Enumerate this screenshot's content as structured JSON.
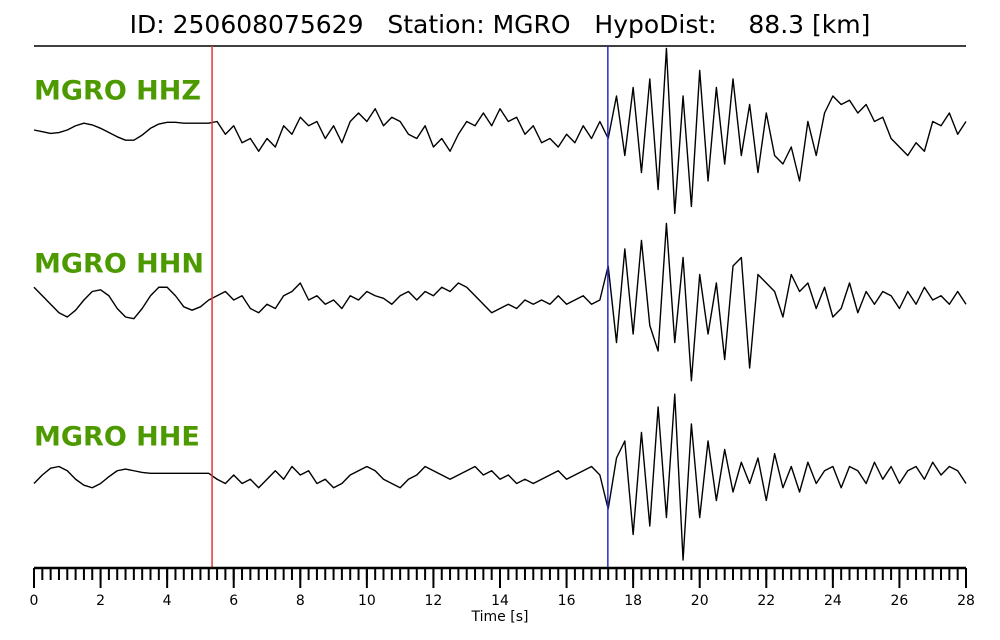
{
  "chart_data": {
    "type": "line",
    "title": "ID: 250608075629   Station: MGRO   HypoDist:    88.3 [km]",
    "xlabel": "Time [s]",
    "label_color": "#4c9a00",
    "xlim": [
      0,
      28
    ],
    "xticks": [
      0,
      2,
      4,
      6,
      8,
      10,
      12,
      14,
      16,
      18,
      20,
      22,
      24,
      26,
      28
    ],
    "xminor_step": 0.25,
    "ylim": [
      -1,
      1
    ],
    "picks": [
      {
        "time": 5.35,
        "color": "#e8333a"
      },
      {
        "time": 17.24,
        "color": "#2b2bd0"
      }
    ],
    "x": [
      0,
      0.25,
      0.5,
      0.75,
      1,
      1.25,
      1.5,
      1.75,
      2,
      2.25,
      2.5,
      2.75,
      3,
      3.25,
      3.5,
      3.75,
      4,
      4.25,
      4.5,
      4.75,
      5,
      5.25,
      5.5,
      5.75,
      6,
      6.25,
      6.5,
      6.75,
      7,
      7.25,
      7.5,
      7.75,
      8,
      8.25,
      8.5,
      8.75,
      9,
      9.25,
      9.5,
      9.75,
      10,
      10.25,
      10.5,
      10.75,
      11,
      11.25,
      11.5,
      11.75,
      12,
      12.25,
      12.5,
      12.75,
      13,
      13.25,
      13.5,
      13.75,
      14,
      14.25,
      14.5,
      14.75,
      15,
      15.25,
      15.5,
      15.75,
      16,
      16.25,
      16.5,
      16.75,
      17,
      17.25,
      17.5,
      17.75,
      18,
      18.25,
      18.5,
      18.75,
      19,
      19.25,
      19.5,
      19.75,
      20,
      20.25,
      20.5,
      20.75,
      21,
      21.25,
      21.5,
      21.75,
      22,
      22.25,
      22.5,
      22.75,
      23,
      23.25,
      23.5,
      23.75,
      24,
      24.25,
      24.5,
      24.75,
      25,
      25.25,
      25.5,
      25.75,
      26,
      26.25,
      26.5,
      26.75,
      27,
      27.25,
      27.5,
      27.75,
      28
    ],
    "series": [
      {
        "name": "MGRO HHZ",
        "color": "#000000",
        "values": [
          0,
          -0.02,
          -0.04,
          -0.03,
          0,
          0.05,
          0.08,
          0.06,
          0.02,
          -0.03,
          -0.08,
          -0.12,
          -0.12,
          -0.06,
          0.02,
          0.07,
          0.09,
          0.09,
          0.08,
          0.08,
          0.08,
          0.08,
          0.1,
          -0.05,
          0.05,
          -0.15,
          -0.1,
          -0.25,
          -0.1,
          -0.2,
          0.05,
          -0.05,
          0.15,
          0.05,
          0.1,
          -0.1,
          0.05,
          -0.15,
          0.1,
          0.2,
          0.1,
          0.25,
          0.05,
          0.15,
          0.1,
          -0.05,
          -0.1,
          0.05,
          -0.2,
          -0.1,
          -0.25,
          -0.05,
          0.1,
          0.05,
          0.2,
          0.05,
          0.25,
          0.1,
          0.15,
          -0.05,
          0.05,
          -0.15,
          -0.1,
          -0.2,
          -0.05,
          -0.15,
          0.05,
          -0.1,
          0.1,
          -0.1,
          0.4,
          -0.3,
          0.5,
          -0.5,
          0.6,
          -0.7,
          0.96,
          -0.98,
          0.4,
          -0.9,
          0.7,
          -0.6,
          0.5,
          -0.4,
          0.6,
          -0.3,
          0.3,
          -0.5,
          0.2,
          -0.3,
          -0.4,
          -0.2,
          -0.6,
          0.1,
          -0.3,
          0.2,
          0.4,
          0.3,
          0.35,
          0.2,
          0.3,
          0.1,
          0.15,
          -0.1,
          -0.2,
          -0.3,
          -0.15,
          -0.25,
          0.1,
          0.05,
          0.2,
          -0.05,
          0.1
        ]
      },
      {
        "name": "MGRO HHN",
        "color": "#000000",
        "values": [
          0.15,
          0.05,
          -0.05,
          -0.15,
          -0.2,
          -0.12,
          0,
          0.1,
          0.12,
          0.05,
          -0.1,
          -0.2,
          -0.22,
          -0.1,
          0.05,
          0.15,
          0.15,
          0.05,
          -0.08,
          -0.12,
          -0.08,
          0,
          0.05,
          0.1,
          0,
          0.05,
          -0.1,
          -0.15,
          -0.05,
          -0.1,
          0.05,
          0.1,
          0.2,
          0,
          0.05,
          -0.05,
          0,
          -0.1,
          0.05,
          0,
          0.1,
          0.05,
          0.02,
          -0.05,
          0.05,
          0.1,
          0,
          0.1,
          0.05,
          0.15,
          0.1,
          0.2,
          0.15,
          0.05,
          -0.05,
          -0.15,
          -0.1,
          -0.05,
          -0.1,
          0,
          -0.05,
          0,
          -0.05,
          0.05,
          -0.05,
          0,
          0.05,
          -0.05,
          0,
          0.4,
          -0.5,
          0.6,
          -0.4,
          0.7,
          -0.3,
          -0.6,
          0.9,
          -0.5,
          0.5,
          -0.95,
          0.3,
          -0.4,
          0.2,
          -0.7,
          0.4,
          0.5,
          -0.8,
          0.3,
          0.2,
          0.1,
          -0.2,
          0.3,
          0.1,
          0.2,
          -0.1,
          0.15,
          -0.2,
          -0.1,
          0.2,
          -0.15,
          0.1,
          -0.05,
          0.1,
          0.05,
          -0.1,
          0.1,
          -0.05,
          0.15,
          0,
          0.05,
          -0.05,
          0.1,
          -0.05
        ]
      },
      {
        "name": "MGRO HHE",
        "color": "#000000",
        "values": [
          -0.1,
          0,
          0.08,
          0.1,
          0.05,
          -0.05,
          -0.12,
          -0.15,
          -0.1,
          -0.02,
          0.05,
          0.07,
          0.05,
          0.03,
          0.02,
          0.02,
          0.02,
          0.02,
          0.02,
          0.02,
          0.02,
          0.02,
          -0.05,
          -0.1,
          0,
          -0.1,
          -0.05,
          -0.15,
          -0.05,
          0.05,
          -0.05,
          0.1,
          0,
          0.05,
          -0.1,
          -0.05,
          -0.15,
          -0.1,
          0,
          0.05,
          0.1,
          0.05,
          -0.05,
          -0.1,
          -0.15,
          -0.05,
          0,
          0.1,
          0.05,
          0,
          -0.05,
          0,
          0.05,
          0.1,
          0,
          0.05,
          -0.05,
          0,
          -0.1,
          -0.05,
          -0.1,
          -0.05,
          0,
          0.05,
          -0.05,
          0,
          0.05,
          0.1,
          0,
          -0.4,
          0.2,
          0.4,
          -0.7,
          0.5,
          -0.6,
          0.8,
          -0.5,
          0.95,
          -1.0,
          0.6,
          -0.5,
          0.4,
          -0.3,
          0.3,
          -0.2,
          0.15,
          -0.1,
          0.2,
          -0.3,
          0.25,
          -0.15,
          0.1,
          -0.2,
          0.15,
          -0.1,
          0.05,
          0.1,
          -0.15,
          0.1,
          0.05,
          -0.1,
          0.15,
          -0.05,
          0.1,
          -0.1,
          0.05,
          0.1,
          -0.05,
          0.15,
          0,
          0.1,
          0.05,
          -0.1
        ]
      }
    ]
  }
}
